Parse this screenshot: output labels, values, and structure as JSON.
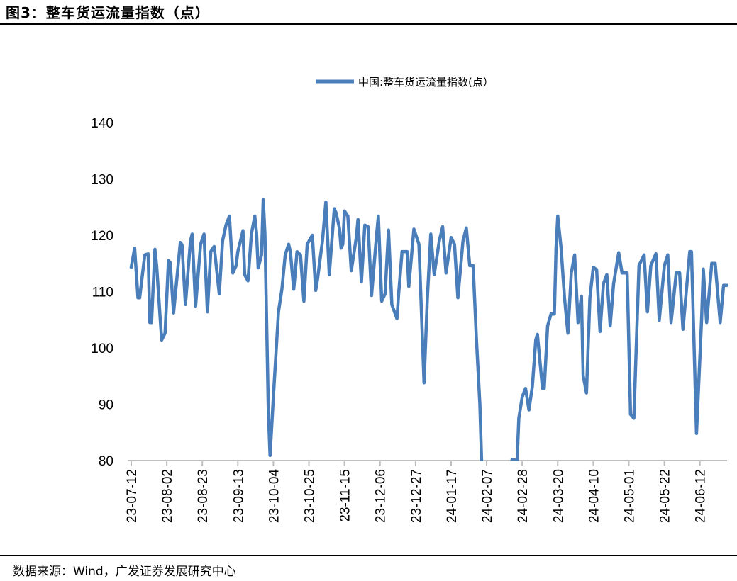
{
  "title": "图3：整车货运流量指数（点）",
  "source": "数据来源：Wind，广发证券发展研究中心",
  "colors": {
    "series": "#4A7EBB",
    "axis": "#BFBFBF"
  },
  "chart_data": {
    "type": "line",
    "title": "",
    "xlabel": "",
    "ylabel": "",
    "ylim": [
      80,
      140
    ],
    "yticks": [
      "80",
      "90",
      "100",
      "110",
      "120",
      "130",
      "140"
    ],
    "x_start": "23-07-12",
    "x_unit": "days since 23-07-12",
    "xticks": [
      "23-07-12",
      "23-08-02",
      "23-08-23",
      "23-09-13",
      "23-10-04",
      "23-10-25",
      "23-11-15",
      "23-12-06",
      "23-12-27",
      "24-01-17",
      "24-02-07",
      "24-02-28",
      "24-03-20",
      "24-04-10",
      "24-05-01",
      "24-05-22",
      "24-06-12"
    ],
    "xtick_step_days": 21,
    "grid": false,
    "legend_position": "top-center",
    "series": [
      {
        "name": "中国:整车货运流量指数(点）",
        "points": [
          [
            0,
            114.3
          ],
          [
            2,
            117.7
          ],
          [
            4,
            108.9
          ],
          [
            5,
            108.9
          ],
          [
            8,
            116.5
          ],
          [
            10,
            116.7
          ],
          [
            11,
            104.5
          ],
          [
            12,
            104.5
          ],
          [
            14,
            117.5
          ],
          [
            15,
            114.6
          ],
          [
            18,
            101.4
          ],
          [
            20,
            102.6
          ],
          [
            22,
            115.5
          ],
          [
            23,
            115.2
          ],
          [
            25,
            106.2
          ],
          [
            29,
            118.7
          ],
          [
            30,
            118.3
          ],
          [
            32,
            107.7
          ],
          [
            35,
            119
          ],
          [
            36,
            120.2
          ],
          [
            38,
            107.4
          ],
          [
            41,
            118.4
          ],
          [
            43,
            120.2
          ],
          [
            45,
            106.4
          ],
          [
            47,
            117.1
          ],
          [
            49,
            118
          ],
          [
            52,
            109.6
          ],
          [
            54,
            119
          ],
          [
            56,
            121.8
          ],
          [
            58,
            123.4
          ],
          [
            60,
            113.3
          ],
          [
            62,
            114.6
          ],
          [
            63,
            117.1
          ],
          [
            66,
            120.8
          ],
          [
            67,
            113
          ],
          [
            69,
            111.9
          ],
          [
            71,
            120.2
          ],
          [
            73,
            123.4
          ],
          [
            74,
            120.5
          ],
          [
            75,
            114.2
          ],
          [
            77,
            116.5
          ],
          [
            78,
            126.3
          ],
          [
            79,
            120.2
          ],
          [
            81,
            88.8
          ],
          [
            82,
            80.9
          ],
          [
            84,
            91.3
          ],
          [
            87,
            106.4
          ],
          [
            89,
            110.4
          ],
          [
            91,
            116.5
          ],
          [
            93,
            118.4
          ],
          [
            94,
            117.1
          ],
          [
            96,
            110.4
          ],
          [
            98,
            117.1
          ],
          [
            100,
            116.5
          ],
          [
            102,
            108.3
          ],
          [
            104,
            118.4
          ],
          [
            107,
            120
          ],
          [
            109,
            110.2
          ],
          [
            110,
            112.1
          ],
          [
            113,
            119
          ],
          [
            115,
            125.9
          ],
          [
            117,
            113
          ],
          [
            120,
            124.7
          ],
          [
            121,
            124
          ],
          [
            123,
            121.3
          ],
          [
            124,
            117.7
          ],
          [
            125,
            118.4
          ],
          [
            126,
            124.3
          ],
          [
            128,
            123.4
          ],
          [
            130,
            113.7
          ],
          [
            133,
            119.6
          ],
          [
            134,
            122.8
          ],
          [
            136,
            111.7
          ],
          [
            138,
            121.8
          ],
          [
            140,
            121.5
          ],
          [
            142,
            109.3
          ],
          [
            145,
            120.2
          ],
          [
            146,
            123.4
          ],
          [
            148,
            108.3
          ],
          [
            150,
            109.6
          ],
          [
            152,
            120.9
          ],
          [
            154,
            107.7
          ],
          [
            157,
            105.2
          ],
          [
            158,
            109.6
          ],
          [
            160,
            117.1
          ],
          [
            163,
            117.1
          ],
          [
            164,
            110.9
          ],
          [
            167,
            121.1
          ],
          [
            170,
            118.4
          ],
          [
            173,
            93.8
          ],
          [
            175,
            108.9
          ],
          [
            177,
            120.2
          ],
          [
            179,
            113
          ],
          [
            182,
            119
          ],
          [
            184,
            121.5
          ],
          [
            186,
            113.3
          ],
          [
            189,
            119.6
          ],
          [
            191,
            118.4
          ],
          [
            193,
            108.9
          ],
          [
            196,
            119
          ],
          [
            198,
            121.3
          ],
          [
            200,
            114.6
          ],
          [
            202,
            114.6
          ],
          [
            204,
            101.4
          ],
          [
            206,
            90
          ],
          [
            207,
            80
          ],
          [
            209,
            60
          ],
          [
            223,
            60
          ],
          [
            225,
            80.2
          ],
          [
            228,
            80
          ],
          [
            229,
            87.5
          ],
          [
            231,
            91.3
          ],
          [
            233,
            92.8
          ],
          [
            235,
            89
          ],
          [
            237,
            93.2
          ],
          [
            239,
            101.4
          ],
          [
            240,
            102.4
          ],
          [
            243,
            92.8
          ],
          [
            244,
            92.8
          ],
          [
            246,
            103.9
          ],
          [
            248,
            106
          ],
          [
            250,
            106
          ],
          [
            251,
            117.7
          ],
          [
            252,
            123.4
          ],
          [
            254,
            117.7
          ],
          [
            256,
            108.9
          ],
          [
            258,
            102.6
          ],
          [
            260,
            113.3
          ],
          [
            262,
            116.5
          ],
          [
            264,
            104.5
          ],
          [
            266,
            109.2
          ],
          [
            267,
            95.1
          ],
          [
            269,
            92
          ],
          [
            271,
            108.9
          ],
          [
            273,
            114.3
          ],
          [
            275,
            113.9
          ],
          [
            277,
            102.9
          ],
          [
            279,
            111.4
          ],
          [
            281,
            113
          ],
          [
            283,
            103.9
          ],
          [
            285,
            111.4
          ],
          [
            288,
            116.9
          ],
          [
            290,
            113.3
          ],
          [
            293,
            113.3
          ],
          [
            295,
            88.2
          ],
          [
            297,
            87.5
          ],
          [
            300,
            114.6
          ],
          [
            303,
            116.5
          ],
          [
            305,
            106.4
          ],
          [
            307,
            114.6
          ],
          [
            310,
            116.7
          ],
          [
            312,
            104.9
          ],
          [
            315,
            114.6
          ],
          [
            317,
            116.5
          ],
          [
            319,
            104.5
          ],
          [
            322,
            113.3
          ],
          [
            324,
            113.3
          ],
          [
            326,
            103.3
          ],
          [
            330,
            117.1
          ],
          [
            331,
            117.1
          ],
          [
            334,
            84.8
          ],
          [
            337,
            105.2
          ],
          [
            338,
            114
          ],
          [
            340,
            104.5
          ],
          [
            343,
            115
          ],
          [
            345,
            115
          ],
          [
            348,
            104.5
          ],
          [
            350,
            111.1
          ],
          [
            352,
            111.1
          ]
        ]
      }
    ]
  }
}
